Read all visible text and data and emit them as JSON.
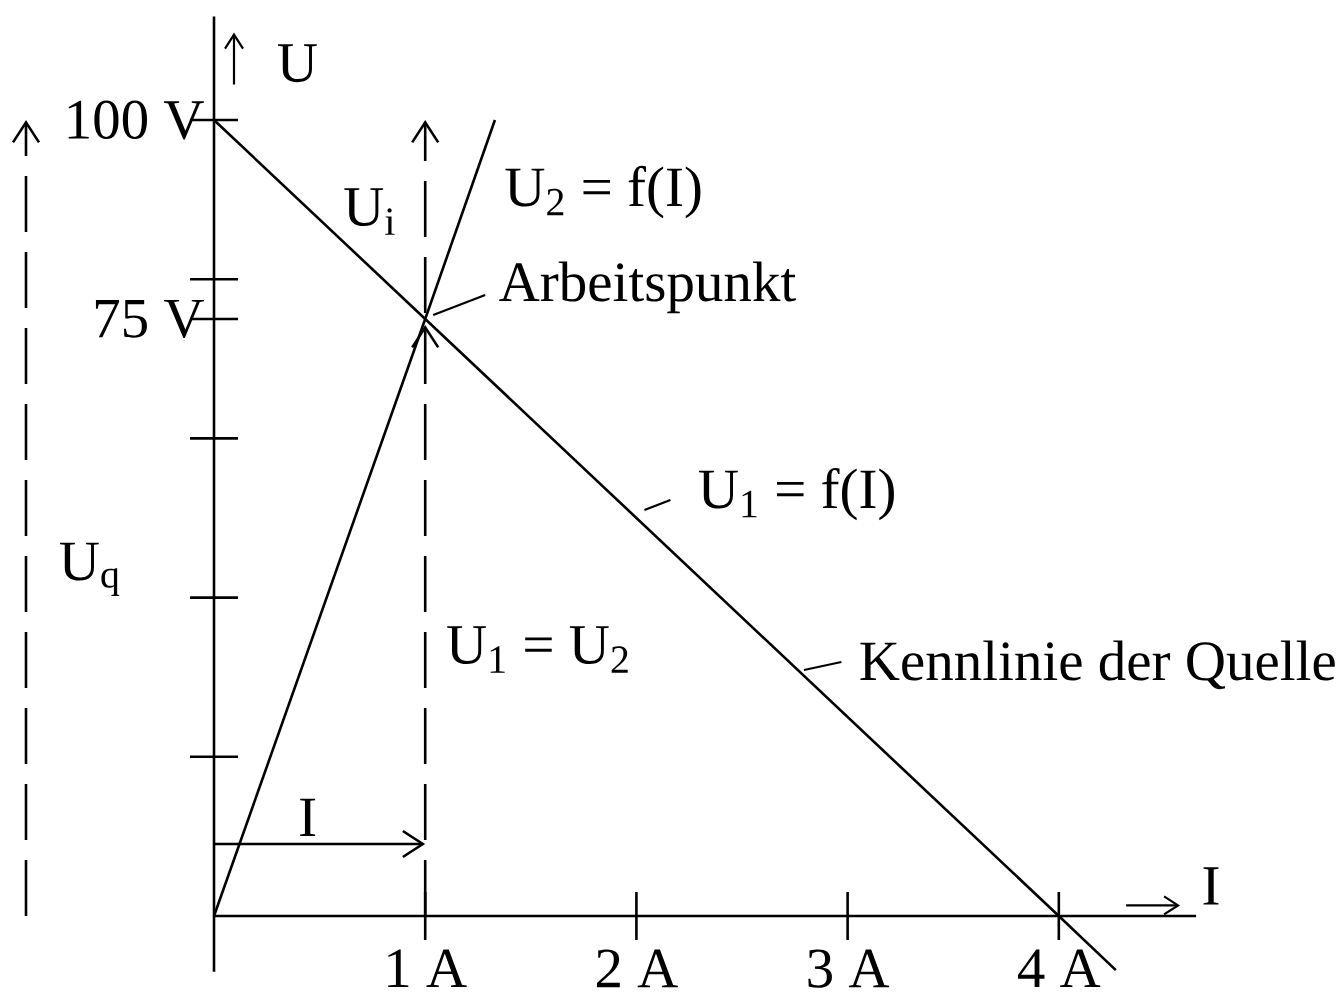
{
  "chart_data": {
    "type": "line",
    "xlabel": "I",
    "ylabel": "U",
    "xlim": [
      0,
      4.65
    ],
    "ylim": [
      -7,
      113
    ],
    "xticks": [
      {
        "value": 1,
        "label": "1 A"
      },
      {
        "value": 2,
        "label": "2 A"
      },
      {
        "value": 3,
        "label": "3 A"
      },
      {
        "value": 4,
        "label": "4 A"
      }
    ],
    "yticks": [
      {
        "value": 20,
        "label": null
      },
      {
        "value": 40,
        "label": null
      },
      {
        "value": 60,
        "label": null
      },
      {
        "value": 75,
        "label": "75 V"
      },
      {
        "value": 80,
        "label": null
      },
      {
        "value": 100,
        "label": "100 V"
      }
    ],
    "series": [
      {
        "name": "U$_{1}$ = f(I)",
        "color": "#000000",
        "x": [
          0,
          1,
          4,
          4.27
        ],
        "values": [
          100,
          75,
          0,
          -6.8
        ]
      },
      {
        "name": "U$_{2}$ = f(I)",
        "color": "#000000",
        "x": [
          0,
          1,
          1.33
        ],
        "values": [
          0,
          75,
          100
        ]
      }
    ],
    "annotations": [
      {
        "text": "Arbeitspunkt",
        "x": 1,
        "y": 75
      },
      {
        "text": "Kennlinie der Quelle",
        "x": 2.8,
        "y": 30
      },
      "U$_{q}$",
      "U$_{i}$",
      "U$_{1}$ = U$_{2}$",
      "I"
    ]
  }
}
